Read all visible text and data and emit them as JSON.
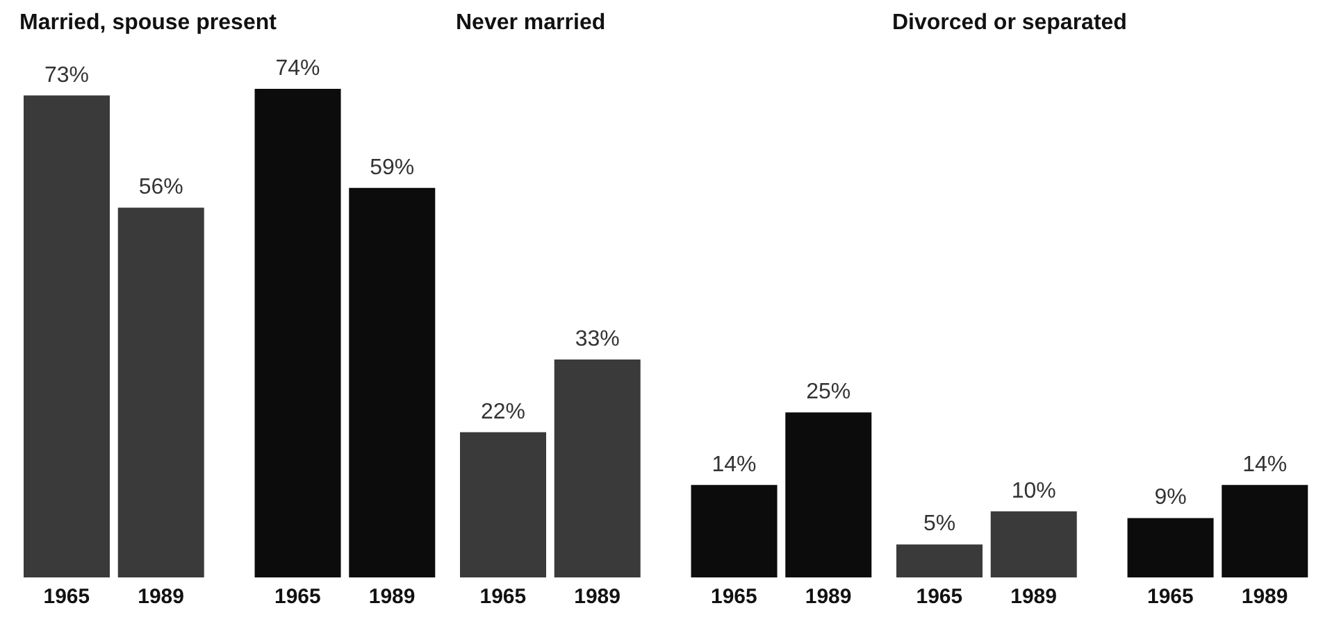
{
  "chart_data": [
    {
      "type": "bar",
      "title": "Married, spouse present",
      "categories": [
        "1965",
        "1989",
        "1965",
        "1989"
      ],
      "values": [
        73,
        56,
        74,
        59
      ],
      "colors": [
        "#3a3a3a",
        "#3a3a3a",
        "#0c0c0c",
        "#0c0c0c"
      ],
      "value_labels": [
        "73%",
        "56%",
        "74%",
        "59%"
      ]
    },
    {
      "type": "bar",
      "title": "Never married",
      "categories": [
        "1965",
        "1989",
        "1965",
        "1989"
      ],
      "values": [
        22,
        33,
        14,
        25
      ],
      "colors": [
        "#3a3a3a",
        "#3a3a3a",
        "#0c0c0c",
        "#0c0c0c"
      ],
      "value_labels": [
        "22%",
        "33%",
        "14%",
        "25%"
      ]
    },
    {
      "type": "bar",
      "title": "Divorced or separated",
      "categories": [
        "1965",
        "1989",
        "1965",
        "1989"
      ],
      "values": [
        5,
        10,
        9,
        14
      ],
      "colors": [
        "#3a3a3a",
        "#3a3a3a",
        "#0c0c0c",
        "#0c0c0c"
      ],
      "value_labels": [
        "5%",
        "10%",
        "9%",
        "14%"
      ]
    }
  ]
}
